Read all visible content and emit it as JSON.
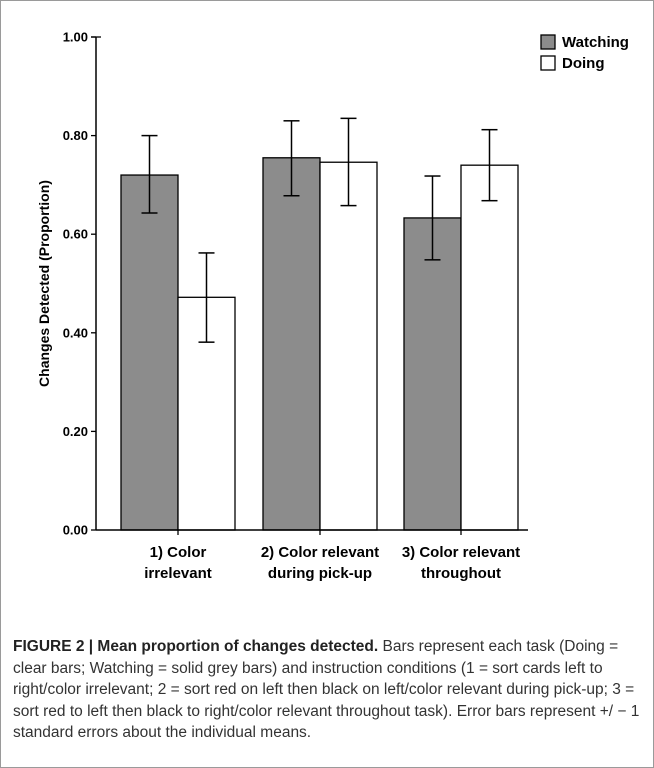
{
  "chart_data": {
    "type": "bar",
    "categories": [
      [
        "1) Color",
        "irrelevant"
      ],
      [
        "2) Color relevant",
        "during pick-up"
      ],
      [
        "3) Color relevant",
        "throughout"
      ]
    ],
    "series": [
      {
        "name": "Watching",
        "values": [
          0.72,
          0.755,
          0.633
        ],
        "error_low": [
          0.643,
          0.678,
          0.548
        ],
        "error_high": [
          0.8,
          0.83,
          0.718
        ],
        "color": "#8c8c8c"
      },
      {
        "name": "Doing",
        "values": [
          0.472,
          0.746,
          0.74
        ],
        "error_low": [
          0.381,
          0.658,
          0.668
        ],
        "error_high": [
          0.562,
          0.835,
          0.812
        ],
        "color": "#ffffff"
      }
    ],
    "ylabel": "Changes Detected (Proportion)",
    "xlabel": "",
    "ylim": [
      0,
      1.0
    ],
    "yticks": [
      "0.00",
      "0.20",
      "0.40",
      "0.60",
      "0.80",
      "1.00"
    ],
    "grid": false,
    "legend_position": "top-right"
  },
  "caption": {
    "title": "FIGURE 2 | Mean proportion of changes detected.",
    "body": " Bars represent each task (Doing = clear bars; Watching = solid grey bars) and instruction conditions (1 = sort cards left to right/color irrelevant; 2 = sort red on left then black on left/color relevant during pick-up; 3 = sort red to left then black to right/color relevant throughout task). Error bars represent +/ − 1 standard errors about the individual means."
  }
}
